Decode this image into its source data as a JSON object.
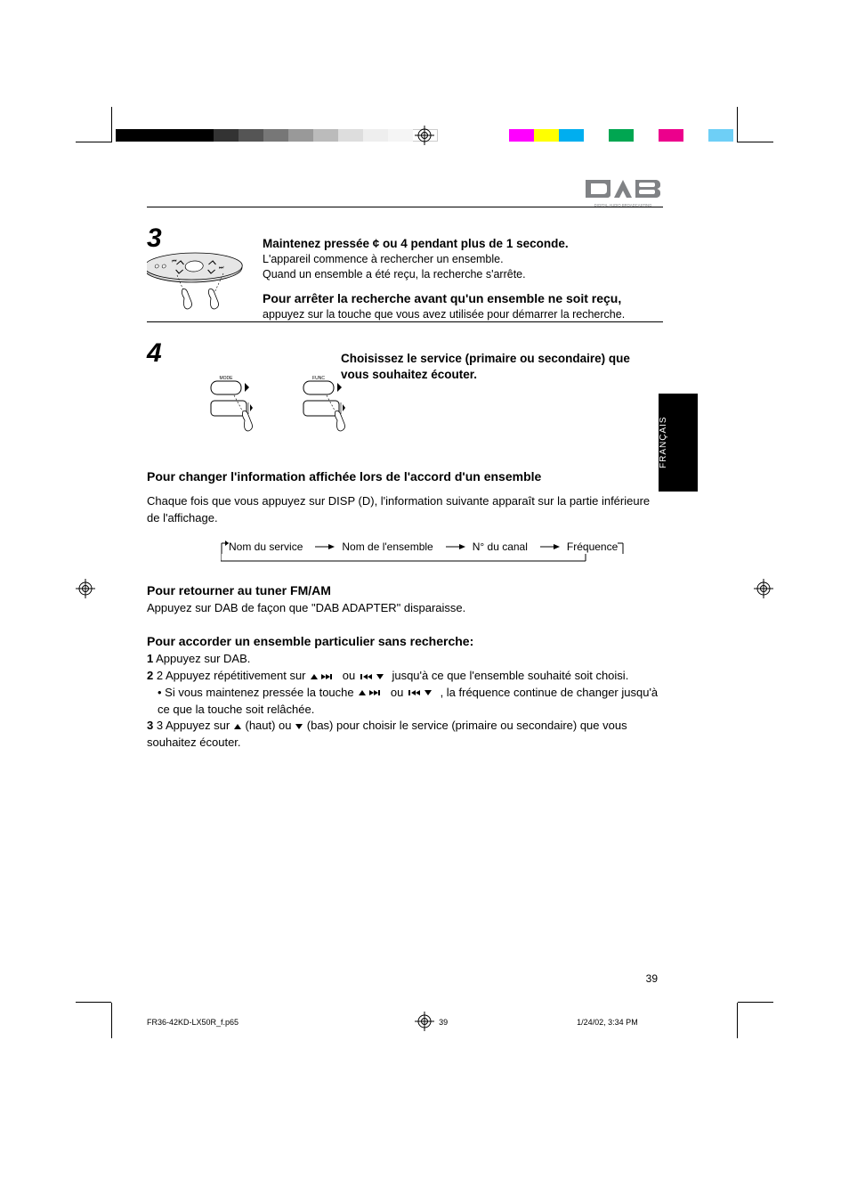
{
  "reg_colors": [
    "#ff00ff",
    "#ffff00",
    "#00aeef",
    "#ffffff",
    "#00a651",
    "#ffffff",
    "#ec008c",
    "#ffffff",
    "#6ecff6"
  ],
  "dab_logo": {
    "label": "DIGITAL AUDIO BROADCASTING",
    "color": "#808285"
  },
  "step1": {
    "num": "3",
    "text": "Maintenez pressée ¢ ou 4 pendant plus de 1 seconde.",
    "sub1": "L'appareil commence à rechercher un ensemble.",
    "sub2": "Quand un ensemble a été reçu, la recherche s'arrête.",
    "stop": "Pour arrêter la recherche avant qu'un ensemble ne soit reçu, appuyez sur la touche que vous avez utilisée pour démarrer la recherche."
  },
  "step2": {
    "num": "4",
    "label_intro": "Choisissez le service (primaire ou secondaire) que vous souhaitez écouter.",
    "mode_label": "MODE",
    "func_label": "FUNC"
  },
  "sec_change_title": "Pour changer l'information affichée lors de l'accord d'un ensemble",
  "sec_change_body": "Chaque fois que vous appuyez sur DISP (D), l'information suivante apparaît sur la partie inférieure de l'affichage.",
  "cycle": {
    "a": "Nom du service",
    "b": "Nom de l'ensemble",
    "c": "N° du canal",
    "d": "Fréquence"
  },
  "sec_fm_title": "Pour retourner au tuner FM/AM",
  "sec_fm_body": "Appuyez sur DAB de façon que \"DAB ADAPTER\" disparaisse.",
  "sec_noscan_title": "Pour accorder un ensemble particulier sans recherche:",
  "sec_noscan_l1": "1 Appuyez sur DAB.",
  "sec_noscan_l2a": "2 Appuyez répétitivement sur ",
  "sec_noscan_l2b": " ou ",
  "sec_noscan_l2c": " jusqu'à ce que l'ensemble souhaité soit choisi.",
  "sec_noscan_l3a": "• Si vous maintenez pressée la touche ",
  "sec_noscan_l3b": " ou ",
  "sec_noscan_l3c": ", la fréquence continue de changer jusqu'à ce que la touche soit relâchée.",
  "sec_noscan_l4a": "3 Appuyez sur ",
  "sec_noscan_l4b": " (haut) ou ",
  "sec_noscan_l4c": " (bas) pour choisir le service (primaire ou secondaire) que vous souhaitez écouter.",
  "page_num": "39",
  "footer_a": "FR36-42KD-LX50R_f.p65",
  "footer_b": "39",
  "footer_c": "1/24/02, 3:34 PM",
  "black_tab_label": "FRANÇAIS",
  "colors": {
    "text": "#000000",
    "bg": "#ffffff"
  }
}
